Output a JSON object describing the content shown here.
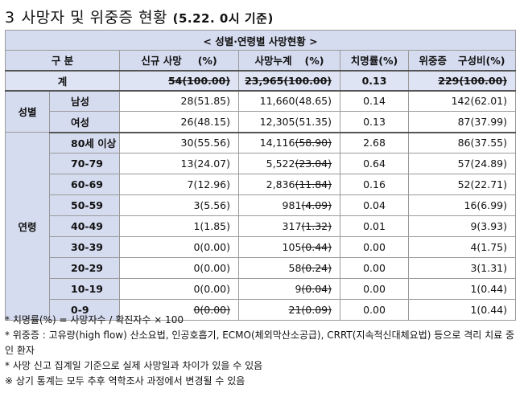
{
  "title": {
    "number": "3",
    "text": "사망자 및 위중증 현황",
    "subtitle": "(5.22. 0시 기준)"
  },
  "table": {
    "banner": "< 성별·연령별 사망현황 >",
    "headers": {
      "category": "구 분",
      "new_deaths": "신규 사망",
      "new_deaths_unit": "(%)",
      "cum_deaths": "사망누계",
      "cum_deaths_unit": "(%)",
      "fatality_rate": "치명률(%)",
      "critical": "위중증",
      "critical_share": "구성비(%)"
    },
    "total": {
      "label": "계",
      "new": "54(100.00)",
      "cum": "23,965(100.00)",
      "rate": "0.13",
      "critical": "229(100.00)"
    },
    "sex_group_label": "성별",
    "sex_rows": [
      {
        "label": "남성",
        "new": "28(51.85)",
        "cum": "11,660(48.65)",
        "rate": "0.14",
        "critical": "142(62.01)"
      },
      {
        "label": "여성",
        "new": "26(48.15)",
        "cum": "12,305(51.35)",
        "rate": "0.13",
        "critical": "87(37.99)"
      }
    ],
    "age_group_label": "연령",
    "age_rows": [
      {
        "label": "80세 이상",
        "new": "30(55.56)",
        "cum_count": "14,116",
        "cum_pct": "(58.90)",
        "rate": "2.68",
        "critical": "86(37.55)"
      },
      {
        "label": "70-79",
        "new": "13(24.07)",
        "cum_count": "5,522",
        "cum_pct": "(23.04)",
        "rate": "0.64",
        "critical": "57(24.89)"
      },
      {
        "label": "60-69",
        "new": "7(12.96)",
        "cum_count": "2,836",
        "cum_pct": "(11.84)",
        "rate": "0.16",
        "critical": "52(22.71)"
      },
      {
        "label": "50-59",
        "new": "3(5.56)",
        "cum_count": "981",
        "cum_pct": "(4.09)",
        "rate": "0.04",
        "critical": "16(6.99)"
      },
      {
        "label": "40-49",
        "new": "1(1.85)",
        "cum_count": "317",
        "cum_pct": "(1.32)",
        "rate": "0.01",
        "critical": "9(3.93)"
      },
      {
        "label": "30-39",
        "new": "0(0.00)",
        "cum_count": "105",
        "cum_pct": "(0.44)",
        "rate": "0.00",
        "critical": "4(1.75)"
      },
      {
        "label": "20-29",
        "new": "0(0.00)",
        "cum_count": "58",
        "cum_pct": "(0.24)",
        "rate": "0.00",
        "critical": "3(1.31)"
      },
      {
        "label": "10-19",
        "new": "0(0.00)",
        "cum_count": "9",
        "cum_pct": "(0.04)",
        "rate": "0.00",
        "critical": "1(0.44)"
      },
      {
        "label": "0-9",
        "new": "0(0.00)",
        "cum_count": "21",
        "cum_pct": "(0.09)",
        "rate": "0.00",
        "critical": "1(0.44)"
      }
    ]
  },
  "notes": {
    "fatality": "* 치명률(%) = 사망자수 / 확진자수 × 100",
    "critical": "* 위중증 : 고유량(high flow) 산소요법, 인공호흡기, ECMO(체외막산소공급), CRRT(지속적신대체요법) 등으로 격리 치료 중인 환자",
    "reporting": "* 사망 신고 집계일 기준으로 실제 사망일과 차이가 있을 수 있음",
    "revision": "※ 상기 통계는 모두 추후 역학조사 과정에서 변경될 수 있음"
  },
  "colors": {
    "header_fill": "#d6dcf0",
    "total_fill": "#dfe4f4",
    "grid": "#9a9a9a"
  }
}
